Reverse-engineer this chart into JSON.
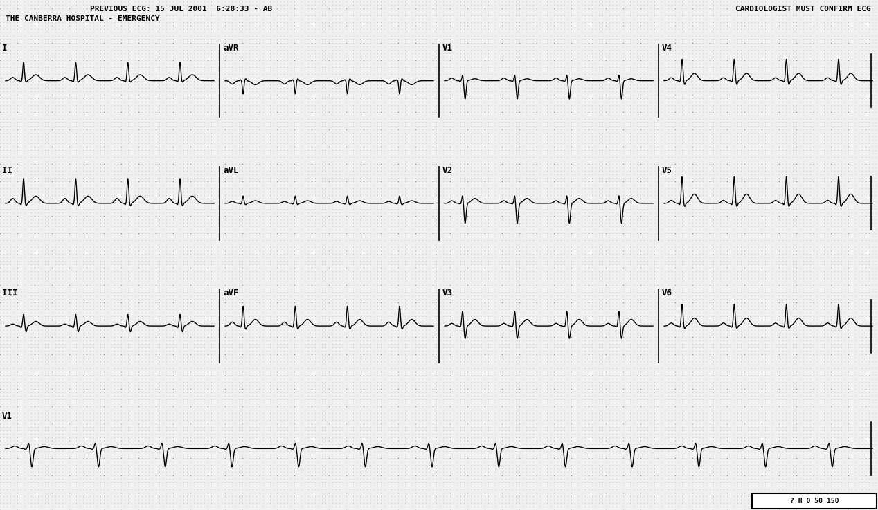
{
  "title_line1": "PREVIOUS ECG: 15 JUL 2001  6:28:33 - AB",
  "title_line2": "THE CANBERRA HOSPITAL - EMERGENCY",
  "title_right": "CARDIOLOGIST MUST CONFIRM ECG",
  "bg_color": "#e8e8e8",
  "dot_minor_color": "#aaaaaa",
  "dot_major_color": "#888888",
  "ecg_color": "#000000",
  "fig_width": 12.68,
  "fig_height": 7.37,
  "dpi": 100,
  "row_labels_col1": [
    "I",
    "II",
    "III",
    "V1"
  ],
  "row_labels_col2": [
    "aVR",
    "aVL",
    "aVF"
  ],
  "row_labels_col3": [
    "V1",
    "V2",
    "V3"
  ],
  "row_labels_col4": [
    "V4",
    "V5",
    "V6"
  ]
}
